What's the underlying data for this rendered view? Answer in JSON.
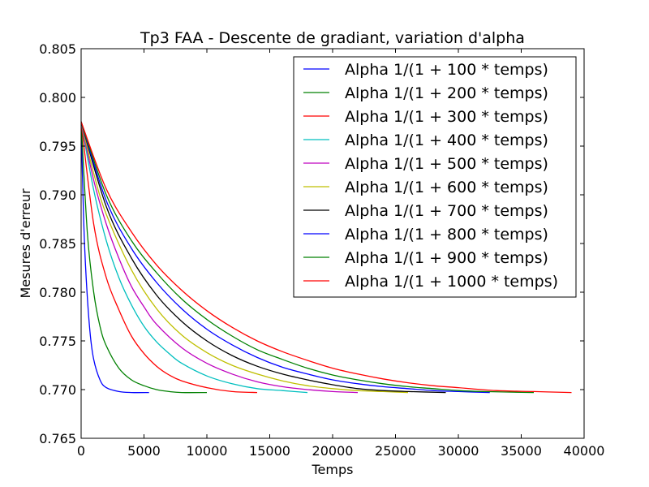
{
  "chart_data": {
    "type": "line",
    "title": "Tp3 FAA - Descente de gradiant, variation d'alpha",
    "xlabel": "Temps",
    "ylabel": "Mesures d'erreur",
    "xlim": [
      0,
      40000
    ],
    "ylim": [
      0.765,
      0.805
    ],
    "xticks": [
      "0",
      "5000",
      "10000",
      "15000",
      "20000",
      "25000",
      "30000",
      "35000",
      "40000"
    ],
    "yticks": [
      "0.765",
      "0.770",
      "0.775",
      "0.780",
      "0.785",
      "0.790",
      "0.795",
      "0.800",
      "0.805"
    ],
    "grid": false,
    "legend_position": "top-right",
    "series": [
      {
        "name": "Alpha 1/(1 + 100 * temps)",
        "color": "#0000ff",
        "x": [
          0,
          200,
          400,
          700,
          1000,
          1500,
          2000,
          3000,
          4000,
          5400
        ],
        "y": [
          0.7975,
          0.7875,
          0.7815,
          0.776,
          0.7731,
          0.771,
          0.7702,
          0.7698,
          0.7697,
          0.7697
        ]
      },
      {
        "name": "Alpha 1/(1 + 200 * temps)",
        "color": "#008000",
        "x": [
          0,
          500,
          1000,
          1500,
          2000,
          3000,
          4000,
          5000,
          6000,
          7000,
          8000,
          10000
        ],
        "y": [
          0.7975,
          0.786,
          0.78,
          0.7765,
          0.7745,
          0.7722,
          0.771,
          0.7704,
          0.77,
          0.7698,
          0.7697,
          0.7697
        ]
      },
      {
        "name": "Alpha 1/(1 + 300 * temps)",
        "color": "#ff0000",
        "x": [
          0,
          1000,
          2000,
          3000,
          4000,
          5000,
          6000,
          7000,
          8000,
          10000,
          12000,
          14000
        ],
        "y": [
          0.7975,
          0.787,
          0.7815,
          0.7782,
          0.7755,
          0.7737,
          0.7724,
          0.7715,
          0.7709,
          0.7702,
          0.7698,
          0.7697
        ]
      },
      {
        "name": "Alpha 1/(1 + 400 * temps)",
        "color": "#00bfbf",
        "x": [
          0,
          1000,
          2000,
          3000,
          4000,
          5000,
          6000,
          7000,
          8000,
          10000,
          12000,
          14000,
          16000,
          18000
        ],
        "y": [
          0.7975,
          0.7905,
          0.7853,
          0.7815,
          0.7787,
          0.7765,
          0.7749,
          0.7737,
          0.7727,
          0.7714,
          0.7706,
          0.7701,
          0.7699,
          0.7697
        ]
      },
      {
        "name": "Alpha 1/(1 + 500 * temps)",
        "color": "#bf00bf",
        "x": [
          0,
          1000,
          2000,
          3000,
          4000,
          5000,
          6000,
          8000,
          10000,
          12000,
          14000,
          16000,
          18000,
          20000,
          22000
        ],
        "y": [
          0.7975,
          0.7915,
          0.787,
          0.7835,
          0.7806,
          0.7785,
          0.7767,
          0.7743,
          0.7727,
          0.7716,
          0.7708,
          0.7703,
          0.77,
          0.7698,
          0.7697
        ]
      },
      {
        "name": "Alpha 1/(1 + 600 * temps)",
        "color": "#bfbf00",
        "x": [
          0,
          1000,
          2000,
          4000,
          6000,
          8000,
          10000,
          12000,
          14000,
          16000,
          18000,
          20000,
          22000,
          24000,
          26000
        ],
        "y": [
          0.7975,
          0.7922,
          0.788,
          0.7823,
          0.7783,
          0.7756,
          0.7738,
          0.7725,
          0.7716,
          0.7709,
          0.7704,
          0.7701,
          0.7699,
          0.7698,
          0.7697
        ]
      },
      {
        "name": "Alpha 1/(1 + 700 * temps)",
        "color": "#000000",
        "x": [
          0,
          2000,
          4000,
          6000,
          8000,
          10000,
          12000,
          14000,
          16000,
          18000,
          20000,
          22000,
          24000,
          26000,
          29000
        ],
        "y": [
          0.7975,
          0.7888,
          0.7835,
          0.7797,
          0.777,
          0.775,
          0.7735,
          0.7724,
          0.7716,
          0.771,
          0.7705,
          0.7701,
          0.7699,
          0.7698,
          0.7697
        ]
      },
      {
        "name": "Alpha 1/(1 + 800 * temps)",
        "color": "#0000ff",
        "x": [
          0,
          2000,
          4000,
          6000,
          8000,
          10000,
          12000,
          14000,
          16000,
          18000,
          20000,
          22000,
          24000,
          26000,
          28000,
          30000,
          32500
        ],
        "y": [
          0.7975,
          0.7894,
          0.7845,
          0.781,
          0.7783,
          0.7762,
          0.7746,
          0.7733,
          0.7723,
          0.7716,
          0.771,
          0.7706,
          0.7703,
          0.7701,
          0.7699,
          0.7698,
          0.7697
        ]
      },
      {
        "name": "Alpha 1/(1 + 900 * temps)",
        "color": "#008000",
        "x": [
          0,
          2000,
          4000,
          6000,
          8000,
          10000,
          12000,
          14000,
          16000,
          18000,
          20000,
          22000,
          24000,
          26000,
          28000,
          30000,
          32000,
          36000
        ],
        "y": [
          0.7975,
          0.79,
          0.7853,
          0.782,
          0.7793,
          0.7772,
          0.7755,
          0.7741,
          0.7731,
          0.7722,
          0.7715,
          0.771,
          0.7706,
          0.7703,
          0.7701,
          0.7699,
          0.7698,
          0.7697
        ]
      },
      {
        "name": "Alpha 1/(1 + 1000 * temps)",
        "color": "#ff0000",
        "x": [
          0,
          2000,
          4000,
          6000,
          8000,
          10000,
          12000,
          14000,
          16000,
          18000,
          20000,
          22000,
          24000,
          26000,
          28000,
          30000,
          33000,
          36000,
          39000
        ],
        "y": [
          0.7975,
          0.7906,
          0.7862,
          0.7828,
          0.7802,
          0.7781,
          0.7764,
          0.775,
          0.7739,
          0.773,
          0.7722,
          0.7716,
          0.7711,
          0.7707,
          0.7704,
          0.7702,
          0.7699,
          0.7698,
          0.7697
        ]
      }
    ]
  }
}
